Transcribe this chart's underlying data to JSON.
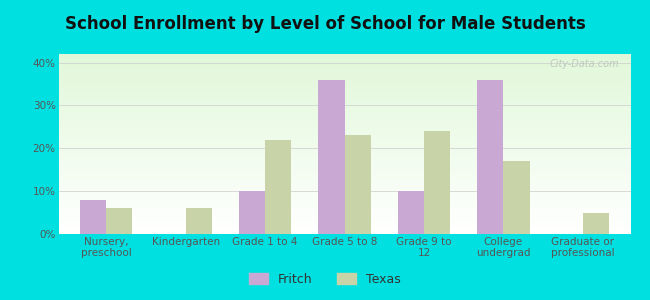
{
  "title": "School Enrollment by Level of School for Male Students",
  "categories": [
    "Nursery,\npreschool",
    "Kindergarten",
    "Grade 1 to 4",
    "Grade 5 to 8",
    "Grade 9 to\n12",
    "College\nundergrad",
    "Graduate or\nprofessional"
  ],
  "fritch_values": [
    8.0,
    0.0,
    10.0,
    36.0,
    10.0,
    36.0,
    0.0
  ],
  "texas_values": [
    6.0,
    6.0,
    22.0,
    23.0,
    24.0,
    17.0,
    5.0
  ],
  "fritch_color": "#c9a8d4",
  "texas_color": "#c8d4a8",
  "background_outer": "#00e0e0",
  "yticks": [
    0,
    10,
    20,
    30,
    40
  ],
  "ylim": [
    0,
    42
  ],
  "title_fontsize": 12,
  "tick_fontsize": 7.5,
  "legend_fontsize": 9,
  "bar_width": 0.33,
  "watermark": "City-Data.com"
}
